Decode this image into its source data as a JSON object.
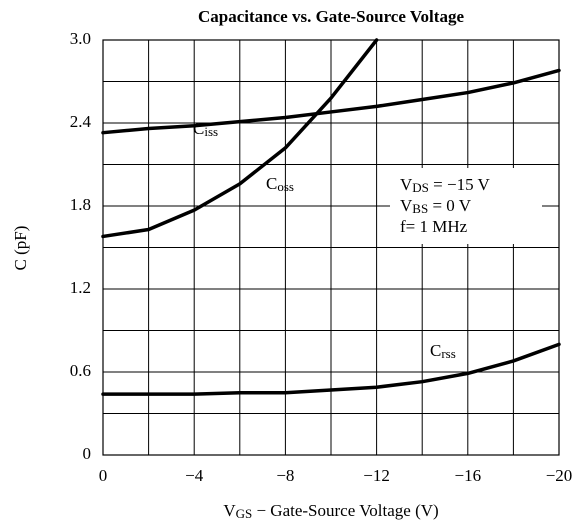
{
  "chart_data": {
    "type": "line",
    "title": "Capacitance vs. Gate-Source Voltage",
    "xlabel": "VGS − Gate-Source Voltage (V)",
    "ylabel": "C (pF)",
    "annotations": [
      "VDS = −15 V",
      "VBS = 0 V",
      "f= 1 MHz"
    ],
    "x": [
      0,
      -2,
      -4,
      -6,
      -8,
      -10,
      -12,
      -14,
      -16,
      -18,
      -20
    ],
    "series": [
      {
        "name": "Ciss",
        "color": "#000000",
        "values": [
          2.33,
          2.36,
          2.38,
          2.41,
          2.44,
          2.48,
          2.52,
          2.57,
          2.62,
          2.69,
          2.78
        ]
      },
      {
        "name": "Coss",
        "color": "#000000",
        "values": [
          1.58,
          1.63,
          1.77,
          1.96,
          2.22,
          2.58,
          3.0,
          null,
          null,
          null,
          null
        ]
      },
      {
        "name": "Crss",
        "color": "#000000",
        "values": [
          0.44,
          0.44,
          0.44,
          0.45,
          0.45,
          0.47,
          0.49,
          0.53,
          0.59,
          0.68,
          0.8
        ]
      }
    ],
    "xlim": [
      0,
      -20
    ],
    "ylim": [
      0,
      3.0
    ],
    "xticks": [
      0,
      {
        "value": -4,
        "label": "−4"
      },
      {
        "value": -8,
        "label": "−8"
      },
      {
        "value": -12,
        "label": "−12"
      },
      {
        "value": -16,
        "label": "−16"
      },
      {
        "value": -20,
        "label": "−20"
      }
    ],
    "yticks": [
      0,
      0.6,
      1.2,
      1.8,
      2.4,
      {
        "value": 3.0,
        "label": "3.0"
      }
    ],
    "xgrid": [
      -2,
      -6,
      -10,
      -14,
      -18
    ],
    "ygrid": [
      0.3,
      0.9,
      1.5,
      2.1,
      2.7
    ],
    "grid": true
  }
}
